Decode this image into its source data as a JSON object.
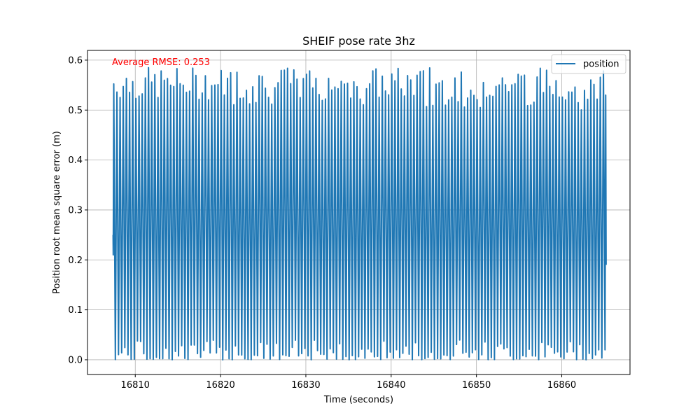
{
  "chart_data": {
    "type": "line",
    "title": "SHEIF pose rate 3hz",
    "xlabel": "Time (seconds)",
    "ylabel": "Position root mean square error (m)",
    "xlim": [
      16804.4,
      16868.0
    ],
    "ylim": [
      -0.0295,
      0.6195
    ],
    "x_range": [
      16807.4,
      16865.2
    ],
    "xticks": [
      16810,
      16820,
      16830,
      16840,
      16850,
      16860
    ],
    "xtick_labels": [
      "16810",
      "16820",
      "16830",
      "16840",
      "16850",
      "16860"
    ],
    "yticks": [
      0.0,
      0.1,
      0.2,
      0.3,
      0.4,
      0.5,
      0.6
    ],
    "ytick_labels": [
      "0.0",
      "0.1",
      "0.2",
      "0.3",
      "0.4",
      "0.5",
      "0.6"
    ],
    "grid": true,
    "legend": {
      "location": "top-right",
      "entries": [
        "position"
      ]
    },
    "series": [
      {
        "name": "position",
        "color": "#1f77b4",
        "description": "oscillating signal, approx. 2.7 cycles per second, peaks about 0.52–0.59 m, troughs about 0.0–0.04 m",
        "approx_frequency_hz": 2.7,
        "peak_range": [
          0.52,
          0.586
        ],
        "trough_range": [
          0.0,
          0.04
        ],
        "start_value": 0.25,
        "end_value": 0.19
      }
    ],
    "annotation": {
      "text": "Average RMSE: 0.253",
      "color": "#ff0000",
      "location": "top-left"
    }
  }
}
